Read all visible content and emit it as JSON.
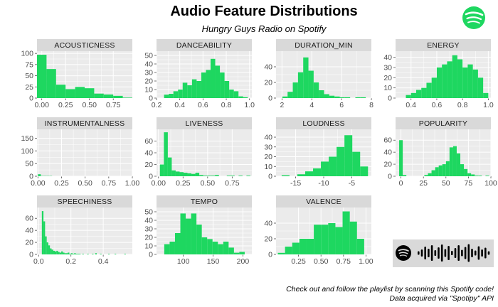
{
  "header": {
    "title": "Audio Feature Distributions",
    "subtitle": "Hungry Guys Radio on Spotify"
  },
  "caption": {
    "line1": "Check out and follow the playlist by scanning this Spotify code!",
    "line2": "Data acquired via \"Spotipy\" API"
  },
  "logo": {
    "icon": "spotify-logo-icon"
  },
  "spotify_code": {
    "icon": "spotify-code-icon",
    "background": "#d9d9d9"
  },
  "colors": {
    "bar": "#1ed760",
    "panel": "#ebebeb",
    "strip": "#d9d9d9",
    "grid": "#ffffff"
  },
  "chart_data": [
    {
      "type": "bar",
      "title": "ACOUSTICNESS",
      "x": [
        0.0,
        0.1,
        0.2,
        0.3,
        0.4,
        0.5,
        0.6,
        0.7,
        0.8,
        0.9
      ],
      "values": [
        97,
        65,
        30,
        20,
        25,
        22,
        10,
        8,
        5,
        1
      ],
      "xlim": [
        -0.05,
        0.95
      ],
      "ylim": [
        0,
        105
      ],
      "xticks": [
        0.0,
        0.25,
        0.5,
        0.75
      ],
      "xtick_labels": [
        "0.00",
        "0.25",
        "0.50",
        "0.75"
      ],
      "yticks": [
        0,
        25,
        50,
        75,
        100
      ],
      "ytick_labels": [
        "0",
        "25",
        "50",
        "75",
        "100"
      ]
    },
    {
      "type": "bar",
      "title": "DANCEABILITY",
      "x": [
        0.285,
        0.325,
        0.365,
        0.405,
        0.445,
        0.485,
        0.525,
        0.565,
        0.605,
        0.645,
        0.685,
        0.725,
        0.765,
        0.805,
        0.845,
        0.885,
        0.925,
        0.965
      ],
      "values": [
        4,
        5,
        8,
        10,
        18,
        15,
        22,
        20,
        30,
        33,
        46,
        38,
        30,
        20,
        10,
        8,
        2,
        1
      ],
      "xlim": [
        0.2,
        1.02
      ],
      "ylim": [
        0,
        55
      ],
      "xticks": [
        0.2,
        0.4,
        0.6,
        0.8,
        1.0
      ],
      "xtick_labels": [
        "0.2",
        "0.4",
        "0.6",
        "0.8",
        "1.0"
      ],
      "yticks": [
        0,
        10,
        20,
        30,
        40,
        50
      ],
      "ytick_labels": [
        "0",
        "10",
        "20",
        "30",
        "40",
        "50"
      ]
    },
    {
      "type": "bar",
      "title": "DURATION_MIN",
      "x": [
        2.2,
        2.55,
        2.9,
        3.25,
        3.6,
        3.95,
        4.3,
        4.65,
        5.0,
        5.35,
        5.7,
        6.05,
        6.4,
        6.75,
        7.1,
        7.45
      ],
      "values": [
        2,
        8,
        20,
        33,
        52,
        35,
        20,
        10,
        5,
        3,
        2,
        1,
        1,
        0,
        1,
        1
      ],
      "xlim": [
        1.6,
        8.0
      ],
      "ylim": [
        0,
        60
      ],
      "xticks": [
        2,
        4,
        6,
        8
      ],
      "xtick_labels": [
        "2",
        "4",
        "6",
        "8"
      ],
      "yticks": [
        0,
        20,
        40
      ],
      "ytick_labels": [
        "0",
        "20",
        "40"
      ]
    },
    {
      "type": "bar",
      "title": "ENERGY",
      "x": [
        0.38,
        0.42,
        0.46,
        0.5,
        0.54,
        0.58,
        0.62,
        0.66,
        0.7,
        0.74,
        0.78,
        0.82,
        0.86,
        0.9,
        0.94,
        0.98
      ],
      "values": [
        3,
        5,
        8,
        10,
        15,
        20,
        30,
        33,
        36,
        42,
        38,
        30,
        33,
        28,
        20,
        5
      ],
      "xlim": [
        0.28,
        1.02
      ],
      "ylim": [
        0,
        46
      ],
      "xticks": [
        0.4,
        0.6,
        0.8,
        1.0
      ],
      "xtick_labels": [
        "0.4",
        "0.6",
        "0.8",
        "1.0"
      ],
      "yticks": [
        0,
        10,
        20,
        30,
        40
      ],
      "ytick_labels": [
        "0",
        "10",
        "20",
        "30",
        "40"
      ]
    },
    {
      "type": "bar",
      "title": "INSTRUMENTALNESS",
      "x": [
        0.015,
        0.045,
        0.075,
        0.105,
        0.135
      ],
      "values": [
        8,
        1,
        1,
        1,
        1
      ],
      "xlim": [
        -0.01,
        1.0
      ],
      "ylim": [
        0,
        185
      ],
      "xticks": [
        0.0,
        0.25,
        0.5,
        0.75,
        1.0
      ],
      "xtick_labels": [
        "0.00",
        "0.25",
        "0.50",
        "0.75",
        "1.00"
      ],
      "yticks": [
        0,
        50,
        100,
        150
      ],
      "ytick_labels": [
        "0",
        "50",
        "100",
        "150"
      ]
    },
    {
      "type": "bar",
      "title": "LIVENESS",
      "x": [
        0.035,
        0.075,
        0.115,
        0.155,
        0.195,
        0.235,
        0.275,
        0.315,
        0.355,
        0.395,
        0.435,
        0.475,
        0.515,
        0.555,
        0.595,
        0.635,
        0.675,
        0.715,
        0.755,
        0.795,
        0.835,
        0.875,
        0.915
      ],
      "values": [
        20,
        75,
        32,
        10,
        8,
        7,
        6,
        5,
        4,
        6,
        2,
        1,
        1,
        1,
        2,
        0,
        0,
        1,
        1,
        0,
        1,
        0,
        1
      ],
      "xlim": [
        -0.02,
        0.95
      ],
      "ylim": [
        0,
        80
      ],
      "xticks": [
        0.0,
        0.25,
        0.5,
        0.75
      ],
      "xtick_labels": [
        "0.00",
        "0.25",
        "0.50",
        "0.75"
      ],
      "yticks": [
        0,
        20,
        40,
        60
      ],
      "ytick_labels": [
        "0",
        "20",
        "40",
        "60"
      ]
    },
    {
      "type": "bar",
      "title": "LOUDNESS",
      "x": [
        -16.8,
        -15.4,
        -14.0,
        -12.6,
        -11.2,
        -9.8,
        -8.4,
        -7.0,
        -5.6,
        -4.2,
        -2.8
      ],
      "values": [
        1,
        0,
        2,
        5,
        8,
        15,
        20,
        30,
        42,
        25,
        10
      ],
      "xlim": [
        -18.5,
        -1.5
      ],
      "ylim": [
        0,
        48
      ],
      "xticks": [
        -15,
        -10,
        -5
      ],
      "xtick_labels": [
        "-15",
        "-10",
        "-5"
      ],
      "yticks": [
        0,
        10,
        20,
        30,
        40
      ],
      "ytick_labels": [
        "0",
        "10",
        "20",
        "30",
        "40"
      ]
    },
    {
      "type": "bar",
      "title": "POPULARITY",
      "x": [
        0,
        4,
        8,
        12,
        16,
        20,
        24,
        28,
        32,
        36,
        40,
        44,
        48,
        52,
        56,
        60,
        64,
        68,
        72,
        76,
        80,
        84,
        88,
        92,
        96
      ],
      "values": [
        60,
        2,
        0,
        0,
        0,
        0,
        0,
        2,
        5,
        10,
        15,
        18,
        20,
        25,
        48,
        50,
        38,
        20,
        12,
        5,
        3,
        1,
        1,
        0,
        1
      ],
      "xlim": [
        -6,
        100
      ],
      "ylim": [
        0,
        78
      ],
      "xticks": [
        0,
        25,
        50,
        75,
        100
      ],
      "xtick_labels": [
        "0",
        "25",
        "50",
        "75",
        "100"
      ],
      "yticks": [
        0,
        20,
        40,
        60
      ],
      "ytick_labels": [
        "0",
        "20",
        "40",
        "60"
      ]
    },
    {
      "type": "bar",
      "title": "SPEECHINESS",
      "x": [
        0.025,
        0.035,
        0.045,
        0.055,
        0.065,
        0.075,
        0.085,
        0.095,
        0.105,
        0.115,
        0.125,
        0.135,
        0.145,
        0.155,
        0.165,
        0.175,
        0.185,
        0.195,
        0.205,
        0.215,
        0.225,
        0.235,
        0.245,
        0.255,
        0.275,
        0.305,
        0.335,
        0.355,
        0.385,
        0.435,
        0.475,
        0.535
      ],
      "values": [
        72,
        55,
        30,
        20,
        15,
        10,
        8,
        6,
        5,
        6,
        4,
        3,
        5,
        3,
        2,
        2,
        3,
        1,
        2,
        1,
        2,
        1,
        1,
        1,
        1,
        1,
        1,
        2,
        1,
        1,
        1,
        1
      ],
      "xlim": [
        -0.01,
        0.58
      ],
      "ylim": [
        0,
        78
      ],
      "xticks": [
        0.0,
        0.2,
        0.4
      ],
      "xtick_labels": [
        "0.0",
        "0.2",
        "0.4"
      ],
      "yticks": [
        0,
        20,
        40,
        60
      ],
      "ytick_labels": [
        "0",
        "20",
        "40",
        "60"
      ]
    },
    {
      "type": "bar",
      "title": "TEMPO",
      "x": [
        72.5,
        81.5,
        90.5,
        99.5,
        108.5,
        117.5,
        126.5,
        135.5,
        144.5,
        153.5,
        162.5,
        171.5,
        180.5,
        189.5,
        198.5
      ],
      "values": [
        12,
        15,
        25,
        48,
        42,
        48,
        35,
        20,
        18,
        15,
        12,
        15,
        8,
        2,
        3
      ],
      "xlim": [
        55,
        215
      ],
      "ylim": [
        0,
        55
      ],
      "xticks": [
        100,
        150,
        200
      ],
      "xtick_labels": [
        "100",
        "150",
        "200"
      ],
      "yticks": [
        0,
        10,
        20,
        30,
        40,
        50
      ],
      "ytick_labels": [
        "0",
        "10",
        "20",
        "30",
        "40",
        "50"
      ]
    },
    {
      "type": "bar",
      "title": "VALENCE",
      "x": [
        0.06,
        0.14,
        0.22,
        0.3,
        0.38,
        0.46,
        0.54,
        0.62,
        0.7,
        0.78,
        0.86,
        0.94
      ],
      "values": [
        2,
        10,
        15,
        20,
        20,
        38,
        38,
        40,
        35,
        55,
        42,
        20
      ],
      "xlim": [
        0.0,
        1.06
      ],
      "ylim": [
        0,
        60
      ],
      "xticks": [
        0.25,
        0.5,
        0.75,
        1.0
      ],
      "xtick_labels": [
        "0.25",
        "0.50",
        "0.75",
        "1.00"
      ],
      "yticks": [
        0,
        20,
        40
      ],
      "ytick_labels": [
        "0",
        "20",
        "40"
      ]
    }
  ]
}
